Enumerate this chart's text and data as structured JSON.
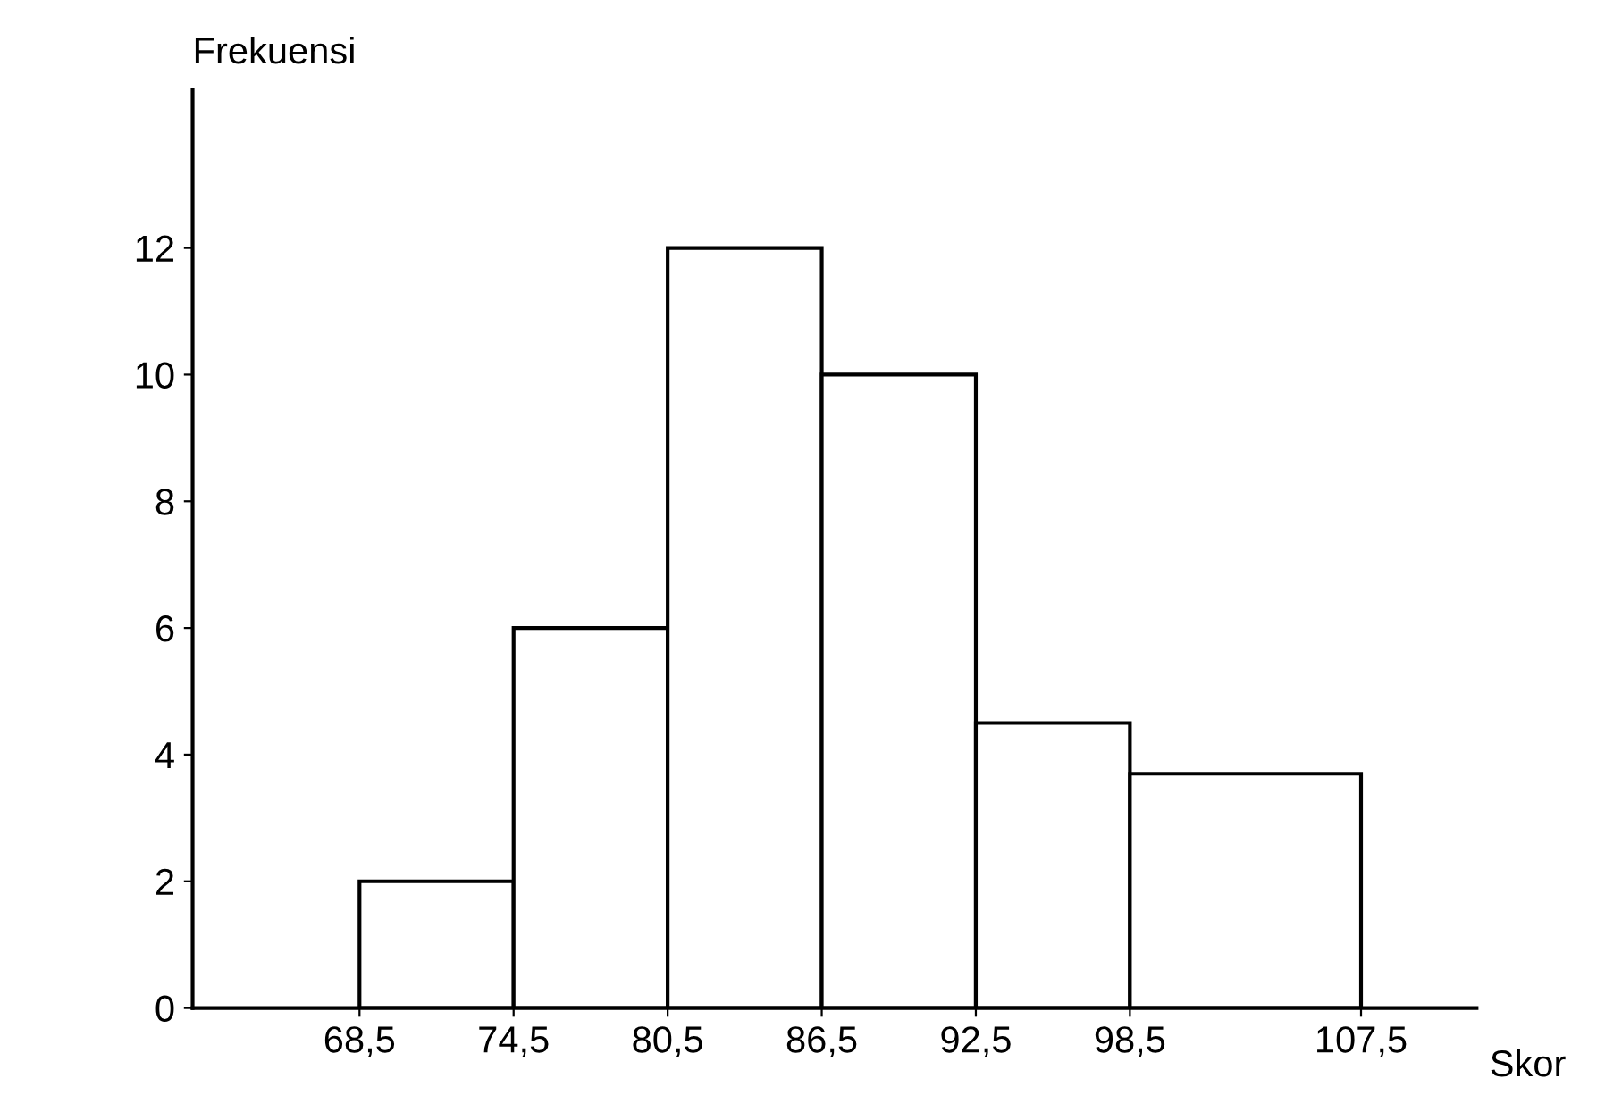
{
  "chart_data": {
    "type": "histogram",
    "xlabel": "Skor",
    "ylabel": "Frekuensi",
    "bins": [
      68.5,
      74.5,
      80.5,
      86.5,
      92.5,
      98.5,
      107.5
    ],
    "values": [
      2,
      6,
      12,
      10,
      4.5,
      3.7
    ],
    "color": "#ffffff",
    "xlim": [
      62,
      112
    ],
    "xticks": [
      {
        "value": 68.5,
        "label": "68,5"
      },
      {
        "value": 74.5,
        "label": "74,5"
      },
      {
        "value": 80.5,
        "label": "80,5"
      },
      {
        "value": 86.5,
        "label": "86,5"
      },
      {
        "value": 92.5,
        "label": "92,5"
      },
      {
        "value": 98.5,
        "label": "98,5"
      },
      {
        "value": 107.5,
        "label": "107,5"
      }
    ],
    "ylim": [
      0,
      14.5
    ],
    "yticks": [
      0,
      2,
      4,
      6,
      8,
      10,
      12
    ],
    "grid": false
  }
}
